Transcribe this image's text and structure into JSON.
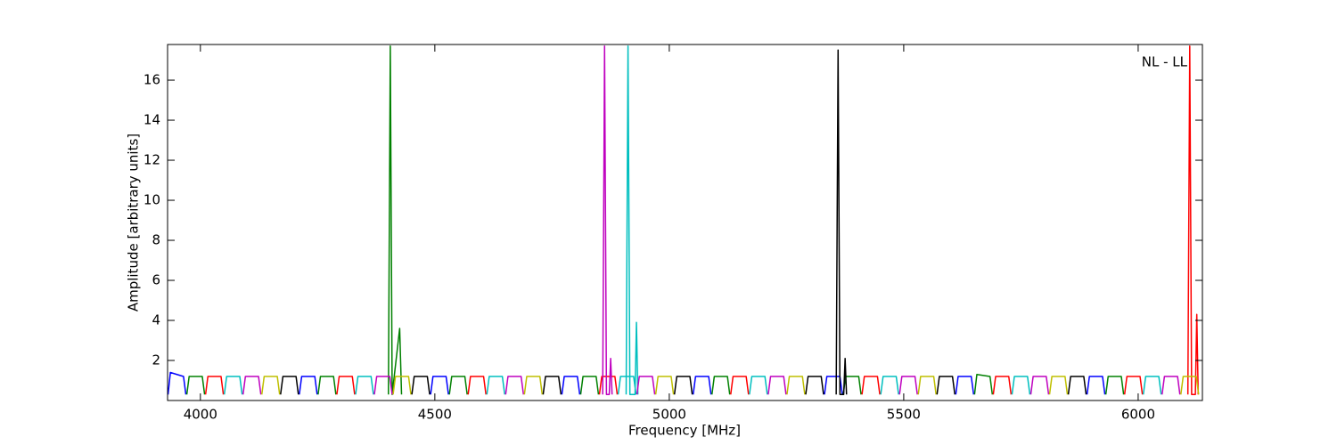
{
  "chart_data": {
    "type": "line",
    "xlabel": "Frequency [MHz]",
    "ylabel": "Amplitude [arbitrary units]",
    "annotation": "NL - LL",
    "xlim": [
      3930,
      6137
    ],
    "ylim": [
      0,
      17.78
    ],
    "xticks": [
      4000,
      4500,
      5000,
      5500,
      6000
    ],
    "yticks": [
      2,
      4,
      6,
      8,
      10,
      12,
      14,
      16
    ],
    "grid": false,
    "series": [
      {
        "color": "#0000ff",
        "x": [
          3931,
          3936,
          3964,
          3969,
          3970,
          4211,
          4216,
          4244,
          4249,
          4250,
          4491,
          4496,
          4524,
          4529,
          4530,
          4771,
          4776,
          4804,
          4809,
          4810,
          5051,
          5056,
          5084,
          5089,
          5090,
          5331,
          5336,
          5364,
          5369,
          5370,
          5611,
          5616,
          5644,
          5649,
          5650,
          5891,
          5896,
          5924,
          5929
        ],
        "values": [
          0.3,
          1.4,
          1.2,
          0.3,
          null,
          0.3,
          1.2,
          1.2,
          0.3,
          null,
          0.3,
          1.2,
          1.2,
          0.3,
          null,
          0.3,
          1.2,
          1.2,
          0.3,
          null,
          0.3,
          1.2,
          1.2,
          0.3,
          null,
          0.3,
          1.2,
          1.2,
          0.3,
          null,
          0.3,
          1.2,
          1.2,
          0.3,
          null,
          0.3,
          1.2,
          1.2,
          0.3
        ]
      },
      {
        "color": "#008000",
        "x": [
          3971,
          3976,
          4004,
          4009,
          4010,
          4251,
          4256,
          4284,
          4289,
          4290,
          4401,
          4405,
          4409,
          4425,
          4429,
          4430,
          4531,
          4536,
          4564,
          4569,
          4570,
          4811,
          4816,
          4844,
          4849,
          4850,
          5091,
          5096,
          5124,
          5129,
          5130,
          5371,
          5376,
          5404,
          5409,
          5410,
          5651,
          5656,
          5684,
          5689,
          5690,
          5931,
          5936,
          5964,
          5969
        ],
        "values": [
          0.3,
          1.2,
          1.2,
          0.3,
          null,
          0.3,
          1.2,
          1.2,
          0.3,
          null,
          0.3,
          17.7,
          0.3,
          3.6,
          0.3,
          null,
          0.3,
          1.2,
          1.2,
          0.3,
          null,
          0.3,
          1.2,
          1.2,
          0.3,
          null,
          0.3,
          1.2,
          1.2,
          0.3,
          null,
          0.3,
          1.2,
          1.2,
          0.3,
          null,
          0.3,
          1.3,
          1.2,
          0.3,
          null,
          0.3,
          1.2,
          1.2,
          0.3
        ]
      },
      {
        "color": "#ff0000",
        "x": [
          4011,
          4016,
          4044,
          4049,
          4050,
          4291,
          4296,
          4324,
          4329,
          4330,
          4571,
          4576,
          4604,
          4609,
          4610,
          4851,
          4856,
          4884,
          4889,
          4890,
          5131,
          5136,
          5164,
          5169,
          5170,
          5411,
          5416,
          5444,
          5449,
          5450,
          5691,
          5696,
          5724,
          5729,
          5730,
          5971,
          5976,
          6004,
          6009,
          6010,
          6106,
          6110,
          6114,
          6122,
          6125,
          6128
        ],
        "values": [
          0.3,
          1.2,
          1.2,
          0.3,
          null,
          0.3,
          1.2,
          1.2,
          0.3,
          null,
          0.3,
          1.2,
          1.2,
          0.3,
          null,
          0.3,
          1.2,
          1.2,
          0.3,
          null,
          0.3,
          1.2,
          1.2,
          0.3,
          null,
          0.3,
          1.2,
          1.2,
          0.3,
          null,
          0.3,
          1.2,
          1.2,
          0.3,
          null,
          0.3,
          1.2,
          1.2,
          0.3,
          null,
          0.3,
          17.7,
          0.3,
          0.3,
          4.3,
          0.3
        ]
      },
      {
        "color": "#00bfbf",
        "x": [
          4051,
          4056,
          4084,
          4089,
          4090,
          4331,
          4336,
          4364,
          4369,
          4370,
          4611,
          4616,
          4644,
          4649,
          4650,
          4891,
          4896,
          4924,
          4929,
          4930,
          4908,
          4912,
          4916,
          4927,
          4930,
          4933,
          4934,
          5171,
          5176,
          5204,
          5209,
          5210,
          5451,
          5456,
          5484,
          5489,
          5490,
          5731,
          5736,
          5764,
          5769,
          5770,
          6011,
          6016,
          6044,
          6049
        ],
        "values": [
          0.3,
          1.2,
          1.2,
          0.3,
          null,
          0.3,
          1.2,
          1.2,
          0.3,
          null,
          0.3,
          1.2,
          1.2,
          0.3,
          null,
          0.3,
          1.2,
          1.2,
          0.3,
          null,
          0.3,
          17.7,
          0.3,
          0.3,
          3.9,
          0.3,
          null,
          0.3,
          1.2,
          1.2,
          0.3,
          null,
          0.3,
          1.2,
          1.2,
          0.3,
          null,
          0.3,
          1.2,
          1.2,
          0.3,
          null,
          0.3,
          1.2,
          1.2,
          0.3
        ]
      },
      {
        "color": "#bf00bf",
        "x": [
          4091,
          4096,
          4124,
          4129,
          4130,
          4371,
          4376,
          4404,
          4409,
          4410,
          4651,
          4656,
          4684,
          4689,
          4690,
          4858,
          4862,
          4866,
          4872,
          4875,
          4878,
          4879,
          4931,
          4936,
          4964,
          4969,
          4970,
          5211,
          5216,
          5244,
          5249,
          5250,
          5491,
          5496,
          5524,
          5529,
          5530,
          5771,
          5776,
          5804,
          5809,
          5810,
          6051,
          6056,
          6084,
          6089
        ],
        "values": [
          0.3,
          1.2,
          1.2,
          0.3,
          null,
          0.3,
          1.2,
          1.2,
          0.3,
          null,
          0.3,
          1.2,
          1.2,
          0.3,
          null,
          0.3,
          17.7,
          0.3,
          0.3,
          2.1,
          0.3,
          null,
          0.3,
          1.2,
          1.2,
          0.3,
          null,
          0.3,
          1.2,
          1.2,
          0.3,
          null,
          0.3,
          1.2,
          1.2,
          0.3,
          null,
          0.3,
          1.2,
          1.2,
          0.3,
          null,
          0.3,
          1.2,
          1.2,
          0.3
        ]
      },
      {
        "color": "#bfbf00",
        "x": [
          4131,
          4136,
          4164,
          4169,
          4170,
          4411,
          4416,
          4444,
          4449,
          4450,
          4691,
          4696,
          4724,
          4729,
          4730,
          4971,
          4976,
          5004,
          5009,
          5010,
          5251,
          5256,
          5284,
          5289,
          5290,
          5531,
          5536,
          5564,
          5569,
          5570,
          5811,
          5816,
          5844,
          5849,
          5850,
          6091,
          6096,
          6124,
          6129
        ],
        "values": [
          0.3,
          1.2,
          1.2,
          0.3,
          null,
          0.3,
          1.2,
          1.2,
          0.3,
          null,
          0.3,
          1.2,
          1.2,
          0.3,
          null,
          0.3,
          1.2,
          1.2,
          0.3,
          null,
          0.3,
          1.2,
          1.2,
          0.3,
          null,
          0.3,
          1.2,
          1.2,
          0.3,
          null,
          0.3,
          1.2,
          1.2,
          0.3,
          null,
          0.3,
          1.2,
          1.2,
          0.3
        ]
      },
      {
        "color": "#000000",
        "x": [
          4171,
          4176,
          4204,
          4209,
          4210,
          4451,
          4456,
          4484,
          4489,
          4490,
          4731,
          4736,
          4764,
          4769,
          4770,
          5011,
          5016,
          5044,
          5049,
          5050,
          5291,
          5296,
          5324,
          5329,
          5330,
          5356,
          5360,
          5364,
          5372,
          5375,
          5378,
          5379,
          5571,
          5576,
          5604,
          5609,
          5610,
          5851,
          5856,
          5884,
          5889
        ],
        "values": [
          0.3,
          1.2,
          1.2,
          0.3,
          null,
          0.3,
          1.2,
          1.2,
          0.3,
          null,
          0.3,
          1.2,
          1.2,
          0.3,
          null,
          0.3,
          1.2,
          1.2,
          0.3,
          null,
          0.3,
          1.2,
          1.2,
          0.3,
          null,
          0.3,
          17.5,
          0.3,
          0.3,
          2.1,
          0.3,
          null,
          0.3,
          1.2,
          1.2,
          0.3,
          null,
          0.3,
          1.2,
          1.2,
          0.3
        ]
      }
    ]
  }
}
